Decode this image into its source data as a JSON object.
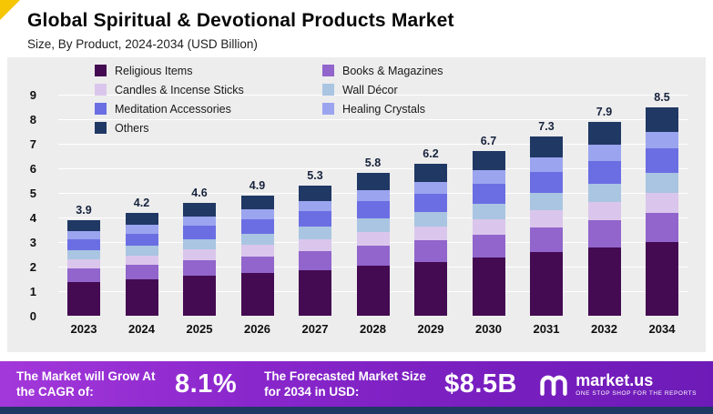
{
  "header": {
    "title": "Global Spiritual & Devotional Products Market",
    "subtitle": "Size, By Product, 2024-2034 (USD Billion)"
  },
  "chart_data": {
    "type": "bar",
    "stacked": true,
    "title": "Global Spiritual & Devotional Products Market",
    "subtitle": "Size, By Product, 2024-2034 (USD Billion)",
    "unit": "USD Billion",
    "categories": [
      "2023",
      "2024",
      "2025",
      "2026",
      "2027",
      "2028",
      "2029",
      "2030",
      "2031",
      "2032",
      "2034"
    ],
    "totals": [
      3.9,
      4.2,
      4.6,
      4.9,
      5.3,
      5.8,
      6.2,
      6.7,
      7.3,
      7.9,
      8.5
    ],
    "series": [
      {
        "name": "Religious Items",
        "color": "#440a52",
        "values": [
          1.38,
          1.48,
          1.62,
          1.73,
          1.87,
          2.05,
          2.19,
          2.37,
          2.58,
          2.79,
          3.0
        ]
      },
      {
        "name": "Books & Magazines",
        "color": "#9165cb",
        "values": [
          0.55,
          0.59,
          0.65,
          0.69,
          0.75,
          0.82,
          0.87,
          0.94,
          1.03,
          1.11,
          1.2
        ]
      },
      {
        "name": "Candles & Incense Sticks",
        "color": "#dac6ec",
        "values": [
          0.37,
          0.39,
          0.43,
          0.46,
          0.5,
          0.55,
          0.58,
          0.63,
          0.69,
          0.74,
          0.8
        ]
      },
      {
        "name": "Wall Décor",
        "color": "#a9c5e2",
        "values": [
          0.37,
          0.39,
          0.43,
          0.46,
          0.5,
          0.55,
          0.58,
          0.63,
          0.69,
          0.74,
          0.8
        ]
      },
      {
        "name": "Meditation Accessories",
        "color": "#6b6ee3",
        "values": [
          0.46,
          0.5,
          0.54,
          0.58,
          0.63,
          0.68,
          0.73,
          0.79,
          0.86,
          0.93,
          1.0
        ]
      },
      {
        "name": "Healing Crystals",
        "color": "#9ba4ee",
        "values": [
          0.32,
          0.34,
          0.38,
          0.4,
          0.43,
          0.48,
          0.51,
          0.55,
          0.6,
          0.65,
          0.7
        ]
      },
      {
        "name": "Others",
        "color": "#1f3864",
        "values": [
          0.45,
          0.51,
          0.55,
          0.58,
          0.62,
          0.67,
          0.74,
          0.79,
          0.85,
          0.94,
          1.0
        ]
      }
    ],
    "ylim": [
      0,
      9
    ],
    "yticks": [
      0,
      1,
      2,
      3,
      4,
      5,
      6,
      7,
      8,
      9
    ],
    "grid": true,
    "legend_position": "top-left",
    "value_labels": "total above each bar"
  },
  "footer": {
    "cagr_label": "The Market will Grow At the CAGR of:",
    "cagr_value": "8.1%",
    "forecast_label": "The Forecasted Market Size for 2034 in USD:",
    "forecast_value": "$8.5B",
    "logo_text": "market.us",
    "logo_tagline": "ONE STOP SHOP FOR THE REPORTS"
  },
  "colors": {
    "chart_background": "#ededed",
    "accent_yellow": "#f6c604",
    "footer_gradient_start": "#a338da",
    "footer_gradient_end": "#6d1bb8",
    "bottom_strip": "#203864"
  }
}
